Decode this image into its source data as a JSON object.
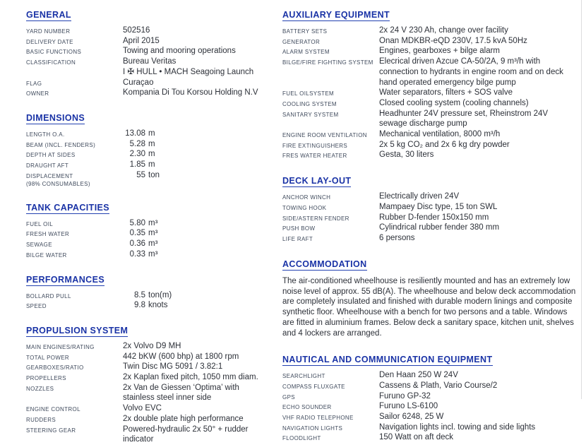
{
  "colors": {
    "heading_blue": "#1a33a6",
    "label_gray_navy": "#3f4a5c",
    "value_dark": "#2c3038",
    "page_edge_gray": "#dcdcde"
  },
  "columns": {
    "left": {
      "sections": [
        {
          "title": "GENERAL",
          "rows": [
            {
              "label": "YARD NUMBER",
              "values": [
                "502516"
              ]
            },
            {
              "label": "DELIVERY DATE",
              "values": [
                "April 2015"
              ]
            },
            {
              "label": "BASIC FUNCTIONS",
              "values": [
                "Towing and mooring operations"
              ]
            },
            {
              "label": "CLASSIFICATION",
              "values": [
                "Bureau Veritas",
                "I ✠ HULL • MACH Seagoing Launch"
              ]
            },
            {
              "label": "FLAG",
              "values": [
                "Curaçao"
              ]
            },
            {
              "label": "OWNER",
              "values": [
                "Kompania Di Tou Korsou Holding N.V"
              ]
            }
          ]
        },
        {
          "title": "DIMENSIONS",
          "rows": [
            {
              "label": "LENGTH O.A.",
              "values": [
                {
                  "num": "13.08",
                  "unit": "m"
                }
              ]
            },
            {
              "label": "BEAM (INCL. FENDERS)",
              "values": [
                {
                  "num": "5.28",
                  "unit": "m"
                }
              ]
            },
            {
              "label": "DEPTH AT SIDES",
              "values": [
                {
                  "num": "2.30",
                  "unit": "m"
                }
              ]
            },
            {
              "label": "DRAUGHT AFT",
              "values": [
                {
                  "num": "1.85",
                  "unit": "m"
                }
              ]
            },
            {
              "label": "DISPLACEMENT\n(98% CONSUMABLES)",
              "values": [
                {
                  "num": "55",
                  "unit": "ton"
                }
              ]
            }
          ]
        },
        {
          "title": "TANK CAPACITIES",
          "rows": [
            {
              "label": "FUEL OIL",
              "values": [
                {
                  "num": "5.80",
                  "unit": "m³"
                }
              ]
            },
            {
              "label": "FRESH WATER",
              "values": [
                {
                  "num": "0.35",
                  "unit": "m³"
                }
              ]
            },
            {
              "label": "SEWAGE",
              "values": [
                {
                  "num": "0.36",
                  "unit": "m³"
                }
              ]
            },
            {
              "label": "BILGE WATER",
              "values": [
                {
                  "num": "0.33",
                  "unit": "m³"
                }
              ]
            }
          ]
        },
        {
          "title": "PERFORMANCES",
          "rows": [
            {
              "label": "BOLLARD PULL",
              "values": [
                {
                  "num": "8.5",
                  "unit": "ton(m)"
                }
              ]
            },
            {
              "label": "SPEED",
              "values": [
                {
                  "num": "9.8",
                  "unit": "knots"
                }
              ]
            }
          ]
        },
        {
          "title": "PROPULSION SYSTEM",
          "rows": [
            {
              "label": "MAIN ENGINES/RATING",
              "values": [
                "2x Volvo D9 MH"
              ]
            },
            {
              "label": "TOTAL POWER",
              "values": [
                "442 bKW (600 bhp) at 1800 rpm"
              ]
            },
            {
              "label": "GEARBOXES/RATIO",
              "values": [
                "Twin Disc MG 5091 / 3.82:1"
              ]
            },
            {
              "label": "PROPELLERS",
              "values": [
                "2x Kaplan fixed pitch, 1050 mm diam."
              ]
            },
            {
              "label": "NOZZLES",
              "values": [
                "2x Van de Giessen ‘Optima’ with",
                "stainless steel inner side"
              ]
            },
            {
              "label": "ENGINE CONTROL",
              "values": [
                "Volvo EVC"
              ]
            },
            {
              "label": "RUDDERS",
              "values": [
                "2x double plate high performance"
              ]
            },
            {
              "label": "STEERING GEAR",
              "values": [
                "Powered-hydraulic 2x 50° + rudder",
                "indicator"
              ]
            }
          ]
        }
      ]
    },
    "right": {
      "sections": [
        {
          "title": "AUXILIARY EQUIPMENT",
          "rows": [
            {
              "label": "BATTERY SETS",
              "values": [
                "2x 24 V 230 Ah, change over facility"
              ]
            },
            {
              "label": "GENERATOR",
              "values": [
                "Onan MDKBR-eQD 230V, 17.5 kvA 50Hz"
              ]
            },
            {
              "label": "ALARM SYSTEM",
              "values": [
                "Engines, gearboxes + bilge alarm"
              ]
            },
            {
              "label": "BILGE/FIRE FIGHTING SYSTEM",
              "values": [
                "Elecrical driven Azcue CA-50/2A, 9 m³/h with",
                "connection to hydrants in engine room and on deck",
                "hand operated emergency bilge pump"
              ]
            },
            {
              "label": "FUEL OILSYSTEM",
              "values": [
                "Water separators, filters + SOS valve"
              ]
            },
            {
              "label": "COOLING SYSTEM",
              "values": [
                "Closed cooling system (cooling channels)"
              ]
            },
            {
              "label": "SANITARY SYSTEM",
              "values": [
                "Headhunter 24V pressure set, Rheinstrom 24V",
                "sewage discharge pump"
              ]
            },
            {
              "label": "ENGINE ROOM VENTILATION",
              "values": [
                "Mechanical ventilation, 8000 m³/h"
              ]
            },
            {
              "label": "FIRE EXTINGUISHERS",
              "values": [
                "2x 5 kg CO₂ and 2x 6 kg dry powder"
              ]
            },
            {
              "label": "FRES WATER HEATER",
              "values": [
                "Gesta, 30 liters"
              ]
            }
          ]
        },
        {
          "title": "DECK LAY-OUT",
          "rows": [
            {
              "label": "ANCHOR WINCH",
              "values": [
                "Electrically driven 24V"
              ]
            },
            {
              "label": "TOWING HOOK",
              "values": [
                "Mampaey Disc type, 15 ton SWL"
              ]
            },
            {
              "label": "SIDE/ASTERN FENDER",
              "values": [
                "Rubber D-fender 150x150 mm"
              ]
            },
            {
              "label": "PUSH BOW",
              "values": [
                "Cylindrical rubber fender 380 mm"
              ]
            },
            {
              "label": "LIFE RAFT",
              "values": [
                "6 persons"
              ]
            }
          ]
        },
        {
          "title": "ACCOMMODATION",
          "paragraph": "The air-conditioned wheelhouse is resiliently mounted and has an extremely low noise level of approx. 55 dB(A). The wheelhouse and below deck accommodation are completely insulated and finished with durable modern linings and composite synthetic floor. Wheelhouse with a bench for two persons and a table. Windows are fitted in aluminium frames.  Below deck a sanitary space, kitchen unit, shelves and 4 lockers are arranged."
        },
        {
          "title": "NAUTICAL AND COMMUNICATION EQUIPMENT",
          "rows": [
            {
              "label": "SEARCHLIGHT",
              "values": [
                "Den Haan 250 W 24V"
              ]
            },
            {
              "label": "COMPASS FLUXGATE",
              "values": [
                "Cassens & Plath, Vario Course/2"
              ]
            },
            {
              "label": "GPS",
              "values": [
                "Furuno GP-32"
              ]
            },
            {
              "label": "ECHO SOUNDER",
              "values": [
                "Furuno LS-6100"
              ]
            },
            {
              "label": "VHF RADIO TELEPHONE",
              "values": [
                "Sailor 6248, 25 W"
              ]
            },
            {
              "label": "NAVIGATION LIGHTS",
              "values": [
                "Navigation lights incl. towing and side lights"
              ]
            },
            {
              "label": "FLOODLIGHT",
              "values": [
                "150 Watt on aft deck"
              ]
            }
          ]
        }
      ]
    }
  }
}
